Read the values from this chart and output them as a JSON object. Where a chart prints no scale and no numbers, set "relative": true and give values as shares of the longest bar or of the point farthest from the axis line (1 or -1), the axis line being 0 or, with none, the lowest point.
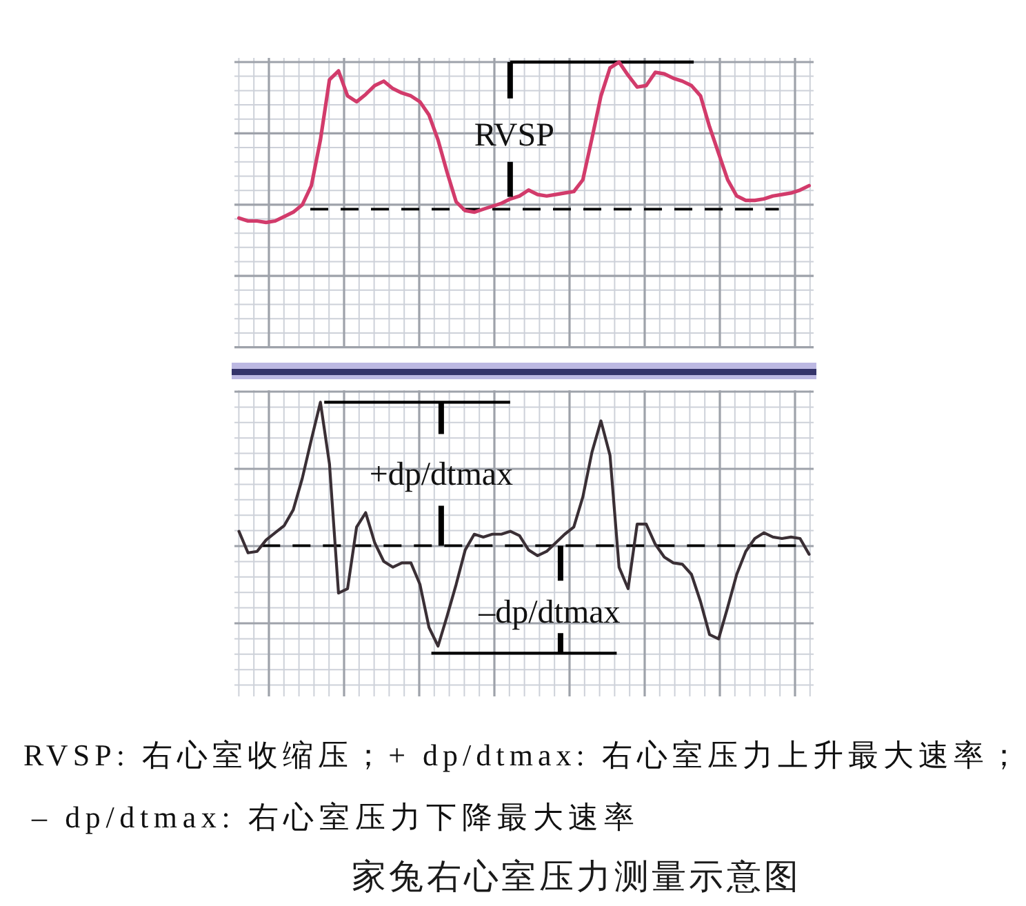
{
  "chart_data": [
    {
      "type": "line",
      "relative": true,
      "grid": true,
      "color": "#d23b6b",
      "categories": [
        null,
        null,
        null,
        null,
        null,
        null,
        null,
        null,
        null,
        null,
        null,
        null,
        null,
        null,
        null,
        null,
        null,
        null,
        null,
        null,
        null,
        null,
        null,
        null,
        null,
        null,
        null,
        null,
        null,
        null,
        null,
        null,
        null,
        null,
        null,
        null,
        null,
        null,
        null,
        null,
        null,
        null,
        null,
        null,
        null,
        null,
        null,
        null,
        null,
        null,
        null,
        null,
        null,
        null,
        null,
        null,
        null,
        null,
        null,
        null,
        null,
        null,
        null,
        null
      ],
      "values": [
        -0.06,
        -0.08,
        -0.08,
        -0.09,
        -0.08,
        -0.05,
        -0.02,
        0.03,
        0.16,
        0.47,
        0.88,
        0.94,
        0.77,
        0.73,
        0.78,
        0.84,
        0.87,
        0.82,
        0.79,
        0.77,
        0.73,
        0.64,
        0.47,
        0.25,
        0.05,
        -0.01,
        -0.02,
        0,
        0.02,
        0.04,
        0.07,
        0.09,
        0.13,
        0.1,
        0.09,
        0.1,
        0.11,
        0.12,
        0.2,
        0.48,
        0.77,
        0.96,
        1,
        0.91,
        0.83,
        0.84,
        0.93,
        0.92,
        0.89,
        0.87,
        0.84,
        0.77,
        0.56,
        0.38,
        0.2,
        0.09,
        0.06,
        0.06,
        0.07,
        0.09,
        0.1,
        0.11,
        0.13,
        0.16
      ],
      "ref_lines": [
        {
          "axis": "y",
          "value": 0,
          "line_style": "dashed",
          "color": "#000000"
        },
        {
          "axis": "y",
          "value": 1,
          "line_style": "solid",
          "color": "#000000"
        }
      ],
      "annotations": [
        "RVSP"
      ]
    },
    {
      "type": "line",
      "relative": true,
      "grid": true,
      "color": "#3a2f35",
      "categories": [
        null,
        null,
        null,
        null,
        null,
        null,
        null,
        null,
        null,
        null,
        null,
        null,
        null,
        null,
        null,
        null,
        null,
        null,
        null,
        null,
        null,
        null,
        null,
        null,
        null,
        null,
        null,
        null,
        null,
        null,
        null,
        null,
        null,
        null,
        null,
        null,
        null,
        null,
        null,
        null,
        null,
        null,
        null,
        null,
        null,
        null,
        null,
        null,
        null,
        null,
        null,
        null,
        null,
        null,
        null,
        null,
        null,
        null,
        null,
        null,
        null,
        null,
        null,
        null
      ],
      "values": [
        0.1,
        -0.05,
        -0.04,
        0.04,
        0.09,
        0.14,
        0.25,
        0.47,
        0.74,
        1,
        0.57,
        -0.33,
        -0.3,
        0.13,
        0.23,
        0.02,
        -0.11,
        -0.15,
        -0.12,
        -0.12,
        -0.27,
        -0.57,
        -0.7,
        -0.49,
        -0.27,
        -0.03,
        0.08,
        0.06,
        0.08,
        0.08,
        0.1,
        0.07,
        -0.03,
        -0.07,
        -0.04,
        0.02,
        0.08,
        0.13,
        0.34,
        0.65,
        0.87,
        0.63,
        -0.15,
        -0.3,
        0.15,
        0.15,
        0.01,
        -0.08,
        -0.12,
        -0.13,
        -0.2,
        -0.39,
        -0.62,
        -0.65,
        -0.43,
        -0.2,
        -0.04,
        0.05,
        0.09,
        0.06,
        0.05,
        0.06,
        0.05,
        -0.06
      ],
      "ref_lines": [
        {
          "axis": "y",
          "value": 0,
          "line_style": "dashed",
          "color": "#000000"
        },
        {
          "axis": "y",
          "value": 1,
          "line_style": "solid",
          "color": "#000000"
        },
        {
          "axis": "y",
          "value": -0.75,
          "line_style": "solid",
          "color": "#000000"
        }
      ],
      "annotations": [
        "+dp/dtmax",
        "–dp/dtmax"
      ]
    },
    {
      "type": "other",
      "title": "家兔右心室压力测量示意图",
      "annotations": [
        "RVSP: 右心室收缩压；+ dp/dtmax: 右心室压力上升最大速率；",
        "– dp/dtmax: 右心室压力下降最大速率"
      ]
    }
  ]
}
